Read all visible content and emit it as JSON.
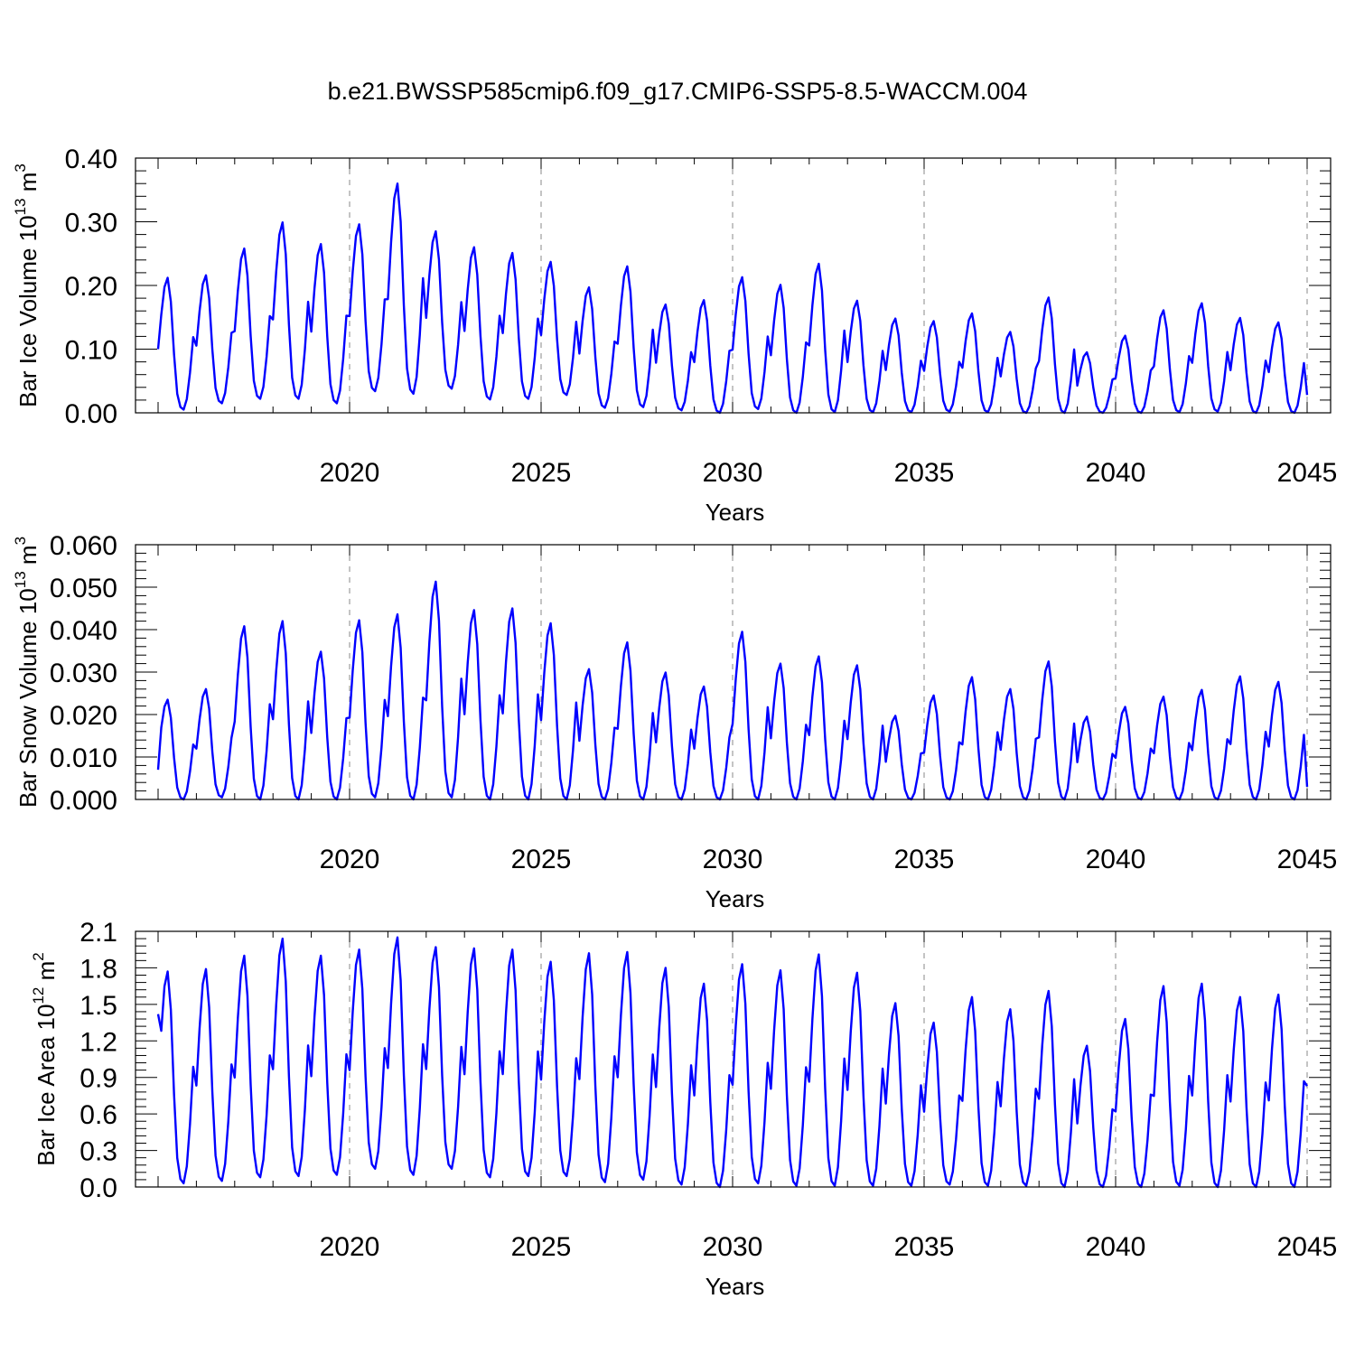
{
  "figure": {
    "title": "b.e21.BWSSP585cmip6.f09_g17.CMIP6-SSP5-8.5-WACCM.004",
    "series_color": "#0000ff"
  },
  "chart_data": [
    {
      "type": "line",
      "ylabel_main": "Bar Ice Volume 10",
      "ylabel_exp": "13",
      "ylabel_unit": " m",
      "ylabel_unit_exp": "3",
      "xlabel": "Years",
      "xlim": [
        2015,
        2045
      ],
      "ylim": [
        0,
        0.4
      ],
      "xticks": [
        2020,
        2025,
        2030,
        2035,
        2040,
        2045
      ],
      "yticks": [
        "0.00",
        "0.10",
        "0.20",
        "0.30",
        "0.40"
      ],
      "grid": "dashed vertical lines at labeled years",
      "peaks": [
        0.212,
        0.216,
        0.258,
        0.299,
        0.265,
        0.296,
        0.36,
        0.285,
        0.26,
        0.251,
        0.237,
        0.197,
        0.23,
        0.17,
        0.177,
        0.213,
        0.201,
        0.234,
        0.176,
        0.148,
        0.144,
        0.156,
        0.127,
        0.181,
        0.095,
        0.121,
        0.161,
        0.172,
        0.149,
        0.142
      ],
      "troughs": [
        0.005,
        0.015,
        0.022,
        0.022,
        0.015,
        0.034,
        0.03,
        0.038,
        0.021,
        0.022,
        0.028,
        0.008,
        0.009,
        0.004,
        0.0,
        0.006,
        0.0,
        0.001,
        0.001,
        0.001,
        0.002,
        0.001,
        0.0,
        0.0,
        0.0,
        0.0,
        0.001,
        0.002,
        0.0,
        0.0
      ],
      "start_value": 0.1,
      "end_value": 0.028
    },
    {
      "type": "line",
      "ylabel_main": "Bar Snow Volume 10",
      "ylabel_exp": "13",
      "ylabel_unit": " m",
      "ylabel_unit_exp": "3",
      "xlabel": "Years",
      "xlim": [
        2015,
        2045
      ],
      "ylim": [
        0,
        0.06
      ],
      "xticks": [
        2020,
        2025,
        2030,
        2035,
        2040,
        2045
      ],
      "yticks": [
        "0.000",
        "0.010",
        "0.020",
        "0.030",
        "0.040",
        "0.050",
        "0.060"
      ],
      "grid": "dashed vertical lines at labeled years",
      "peaks": [
        0.0235,
        0.026,
        0.0408,
        0.042,
        0.0348,
        0.0422,
        0.0436,
        0.0513,
        0.0446,
        0.045,
        0.0415,
        0.0307,
        0.037,
        0.0299,
        0.0266,
        0.0395,
        0.032,
        0.0337,
        0.0316,
        0.0197,
        0.0245,
        0.0288,
        0.026,
        0.0325,
        0.0195,
        0.0218,
        0.0242,
        0.0258,
        0.029,
        0.0277
      ],
      "troughs": [
        0.0,
        0.0005,
        0.0,
        0.0,
        0.0,
        0.0005,
        0.0,
        0.0005,
        0.0,
        0.0,
        0.0,
        0.0,
        0.0,
        0.0,
        0.0,
        0.0,
        0.0,
        0.0,
        0.0,
        0.0,
        0.0,
        0.0,
        0.0,
        0.0,
        0.0,
        0.0,
        0.0,
        0.0,
        0.0,
        0.0
      ],
      "start_value": 0.007,
      "end_value": 0.003
    },
    {
      "type": "line",
      "ylabel_main": "Bar Ice Area 10",
      "ylabel_exp": "12",
      "ylabel_unit": " m",
      "ylabel_unit_exp": "2",
      "xlabel": "Years",
      "xlim": [
        2015,
        2045
      ],
      "ylim": [
        0,
        2.1
      ],
      "xticks": [
        2020,
        2025,
        2030,
        2035,
        2040,
        2045
      ],
      "yticks": [
        "0.0",
        "0.3",
        "0.6",
        "0.9",
        "1.2",
        "1.5",
        "1.8",
        "2.1"
      ],
      "grid": "dashed vertical lines at labeled years",
      "peaks": [
        1.77,
        1.79,
        1.9,
        2.04,
        1.9,
        1.95,
        2.05,
        1.97,
        1.96,
        1.95,
        1.85,
        1.92,
        1.93,
        1.8,
        1.67,
        1.83,
        1.78,
        1.91,
        1.76,
        1.51,
        1.35,
        1.56,
        1.46,
        1.61,
        1.16,
        1.38,
        1.65,
        1.67,
        1.56,
        1.58
      ],
      "troughs": [
        0.03,
        0.05,
        0.08,
        0.09,
        0.1,
        0.15,
        0.1,
        0.15,
        0.08,
        0.09,
        0.09,
        0.04,
        0.06,
        0.02,
        0.0,
        0.03,
        0.01,
        0.01,
        0.01,
        0.01,
        0.02,
        0.01,
        0.01,
        0.0,
        0.0,
        0.0,
        0.01,
        0.0,
        0.0,
        0.0
      ],
      "start_value": 1.42,
      "end_value": 0.83
    }
  ]
}
